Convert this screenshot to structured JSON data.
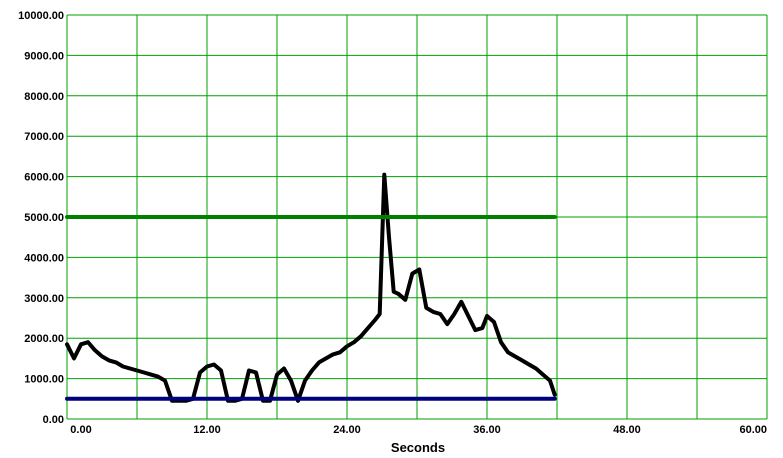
{
  "chart_data": {
    "type": "line",
    "title": "",
    "xlabel": "Seconds",
    "ylabel": "",
    "xlim": [
      0,
      60
    ],
    "ylim": [
      0,
      10000
    ],
    "grid": true,
    "x_ticks": [
      "0.00",
      "12.00",
      "24.00",
      "36.00",
      "48.00",
      "60.00"
    ],
    "y_ticks": [
      "0.00",
      "1000.00",
      "2000.00",
      "3000.00",
      "4000.00",
      "5000.00",
      "6000.00",
      "7000.00",
      "8000.00",
      "9000.00",
      "10000.00"
    ],
    "colors": {
      "grid": "#00a000",
      "signal": "#000000",
      "upper_limit": "#008000",
      "lower_limit": "#00007f"
    },
    "series": [
      {
        "key": "signal",
        "x": [
          0.0,
          0.6,
          1.2,
          1.8,
          2.4,
          3.0,
          3.6,
          4.2,
          4.8,
          5.4,
          6.0,
          6.6,
          7.2,
          7.8,
          8.4,
          9.0,
          9.6,
          10.2,
          10.8,
          11.4,
          12.0,
          12.6,
          13.2,
          13.8,
          14.4,
          15.0,
          15.6,
          16.2,
          16.8,
          17.4,
          18.0,
          18.6,
          19.2,
          19.8,
          20.4,
          21.0,
          21.6,
          22.2,
          22.8,
          23.4,
          24.0,
          24.6,
          25.2,
          25.8,
          26.4,
          26.8,
          27.2,
          27.6,
          28.0,
          28.4,
          29.0,
          29.6,
          30.2,
          30.8,
          31.4,
          32.0,
          32.6,
          33.2,
          33.8,
          34.4,
          35.0,
          35.6,
          36.0,
          36.6,
          37.2,
          37.8,
          38.4,
          39.0,
          39.6,
          40.2,
          40.8,
          41.4,
          41.8
        ],
        "y": [
          1850,
          1500,
          1850,
          1900,
          1700,
          1550,
          1450,
          1400,
          1300,
          1250,
          1200,
          1150,
          1100,
          1050,
          950,
          450,
          450,
          450,
          500,
          1150,
          1300,
          1350,
          1200,
          450,
          450,
          500,
          1200,
          1150,
          450,
          450,
          1100,
          1250,
          950,
          450,
          950,
          1200,
          1400,
          1500,
          1600,
          1650,
          1800,
          1900,
          2050,
          2250,
          2450,
          2600,
          6050,
          4500,
          3150,
          3100,
          2950,
          3600,
          3700,
          2750,
          2650,
          2600,
          2350,
          2600,
          2900,
          2550,
          2200,
          2250,
          2550,
          2400,
          1900,
          1650,
          1550,
          1450,
          1350,
          1250,
          1100,
          950,
          600
        ]
      },
      {
        "key": "upper_limit",
        "x": [
          0.0,
          41.8
        ],
        "y": [
          5000,
          5000
        ]
      },
      {
        "key": "lower_limit",
        "x": [
          0.0,
          41.8
        ],
        "y": [
          500,
          500
        ]
      }
    ]
  }
}
